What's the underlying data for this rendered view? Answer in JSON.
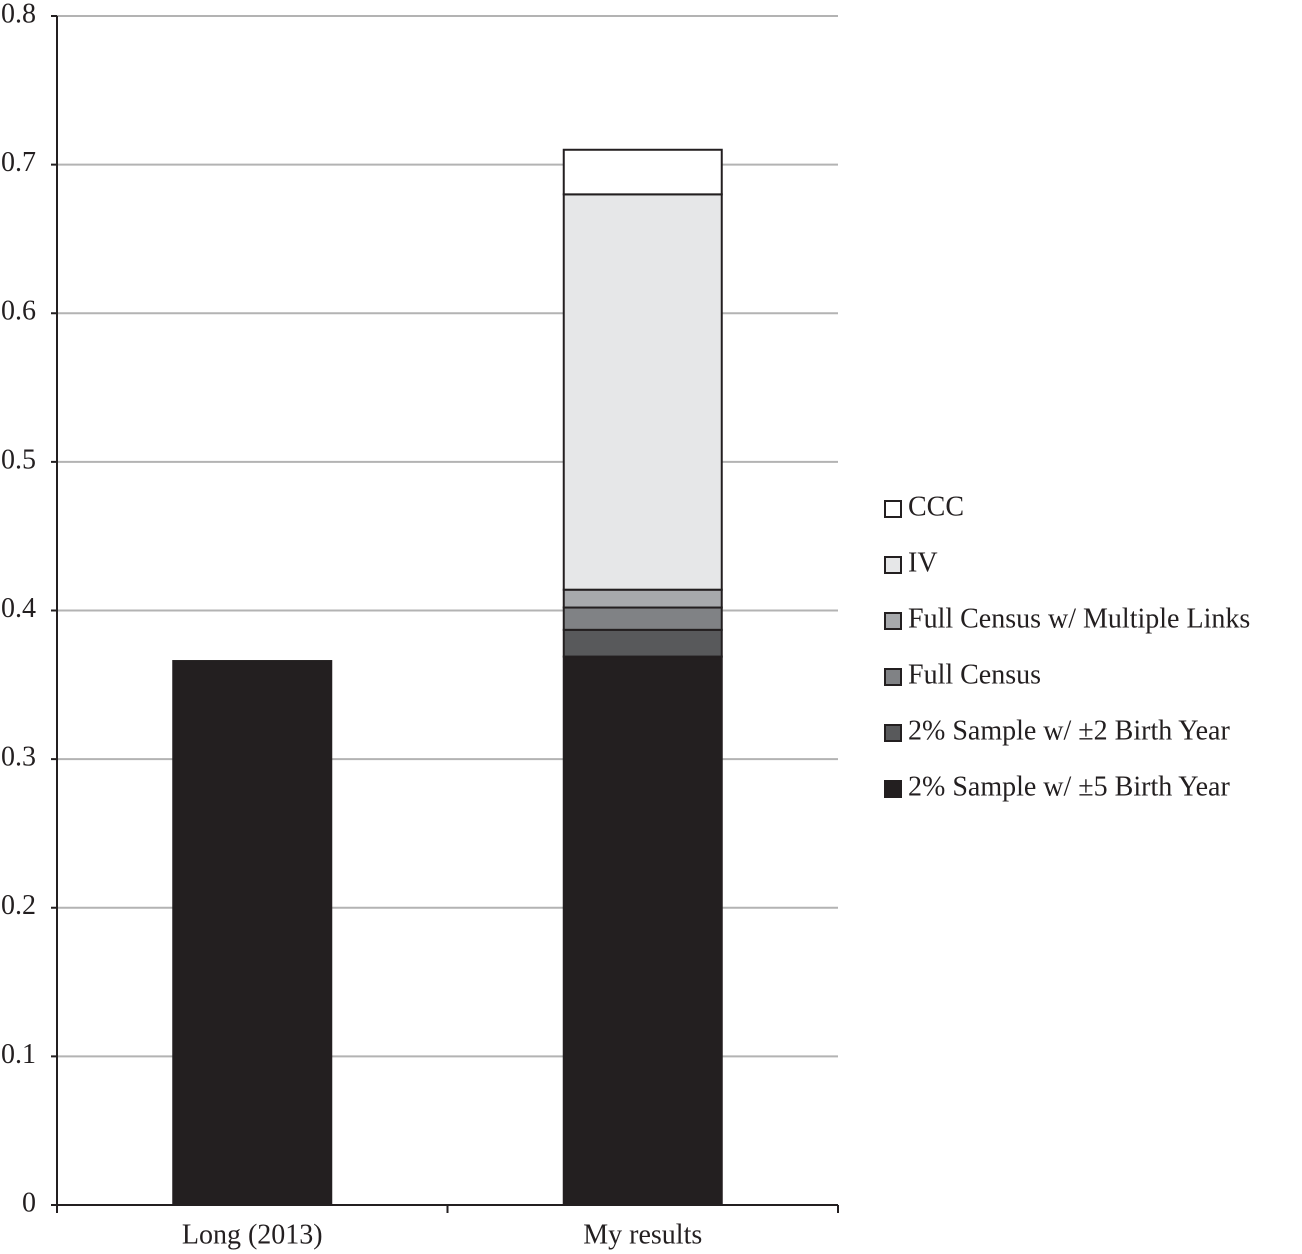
{
  "chart_data": {
    "type": "stacked_bar",
    "categories": [
      "Long (2013)",
      "My results"
    ],
    "series": [
      {
        "name": "2% Sample w/ ±5 Birth Year",
        "color": "#231f20",
        "values": [
          0.366,
          0.369
        ]
      },
      {
        "name": "2% Sample w/ ±2 Birth Year",
        "color": "#58595b",
        "values": [
          null,
          0.018
        ]
      },
      {
        "name": "Full Census",
        "color": "#808285",
        "values": [
          null,
          0.015
        ]
      },
      {
        "name": "Full Census w/ Multiple Links",
        "color": "#a7a9ac",
        "values": [
          null,
          0.012
        ]
      },
      {
        "name": "IV",
        "color": "#e6e7e8",
        "values": [
          null,
          0.266
        ]
      },
      {
        "name": "CCC",
        "color": "#ffffff",
        "values": [
          null,
          0.03
        ]
      }
    ],
    "ylim": [
      0,
      0.8
    ],
    "yticks": [
      0,
      0.1,
      0.2,
      0.3,
      0.4,
      0.5,
      0.6,
      0.7,
      0.8
    ],
    "grid": true,
    "legend": "right"
  }
}
